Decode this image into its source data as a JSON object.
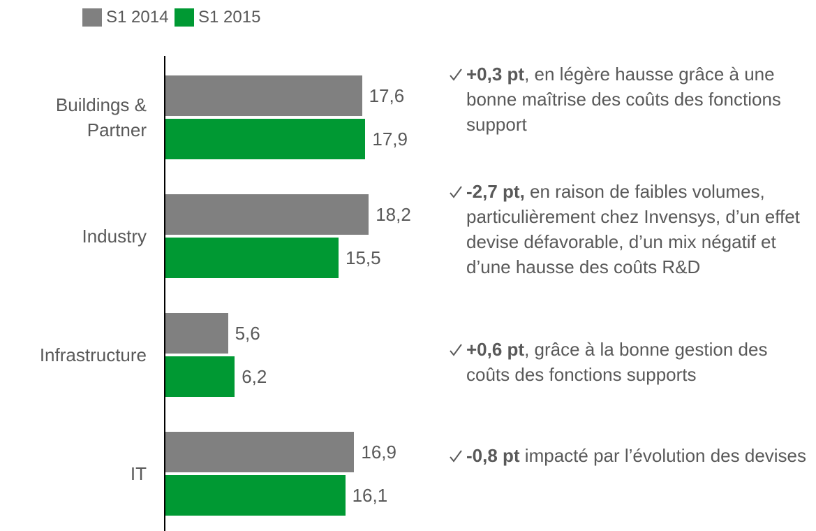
{
  "chart_data": {
    "type": "hbar",
    "categories": [
      "Buildings & Partner",
      "Industry",
      "Infrastructure",
      "IT"
    ],
    "series": [
      {
        "name": "S1 2014",
        "color": "#808080",
        "values": [
          17.6,
          18.2,
          5.6,
          16.9
        ],
        "value_labels": [
          "17,6",
          "18,2",
          "5,6",
          "16,9"
        ]
      },
      {
        "name": "S1 2015",
        "color": "#009933",
        "values": [
          17.9,
          15.5,
          6.2,
          16.1
        ],
        "value_labels": [
          "17,9",
          "15,5",
          "6,2",
          "16,1"
        ]
      }
    ],
    "xlim": [
      0,
      20
    ],
    "legend": "top-left",
    "annotations": [
      {
        "bold": "+0,3 pt",
        "text": ", en légère hausse grâce à une bonne maîtrise des coûts des fonctions support"
      },
      {
        "bold": "-2,7 pt,",
        "text": " en raison de faibles volumes, particulièrement chez Invensys, d’un effet devise défavorable, d’un mix négatif et d’une hausse des coûts R&D"
      },
      {
        "bold": "+0,6 pt",
        "text": ", grâce à la bonne gestion des coûts des fonctions supports"
      },
      {
        "bold": "-0,8 pt",
        "text": " impacté par l’évolution des devises"
      }
    ]
  }
}
